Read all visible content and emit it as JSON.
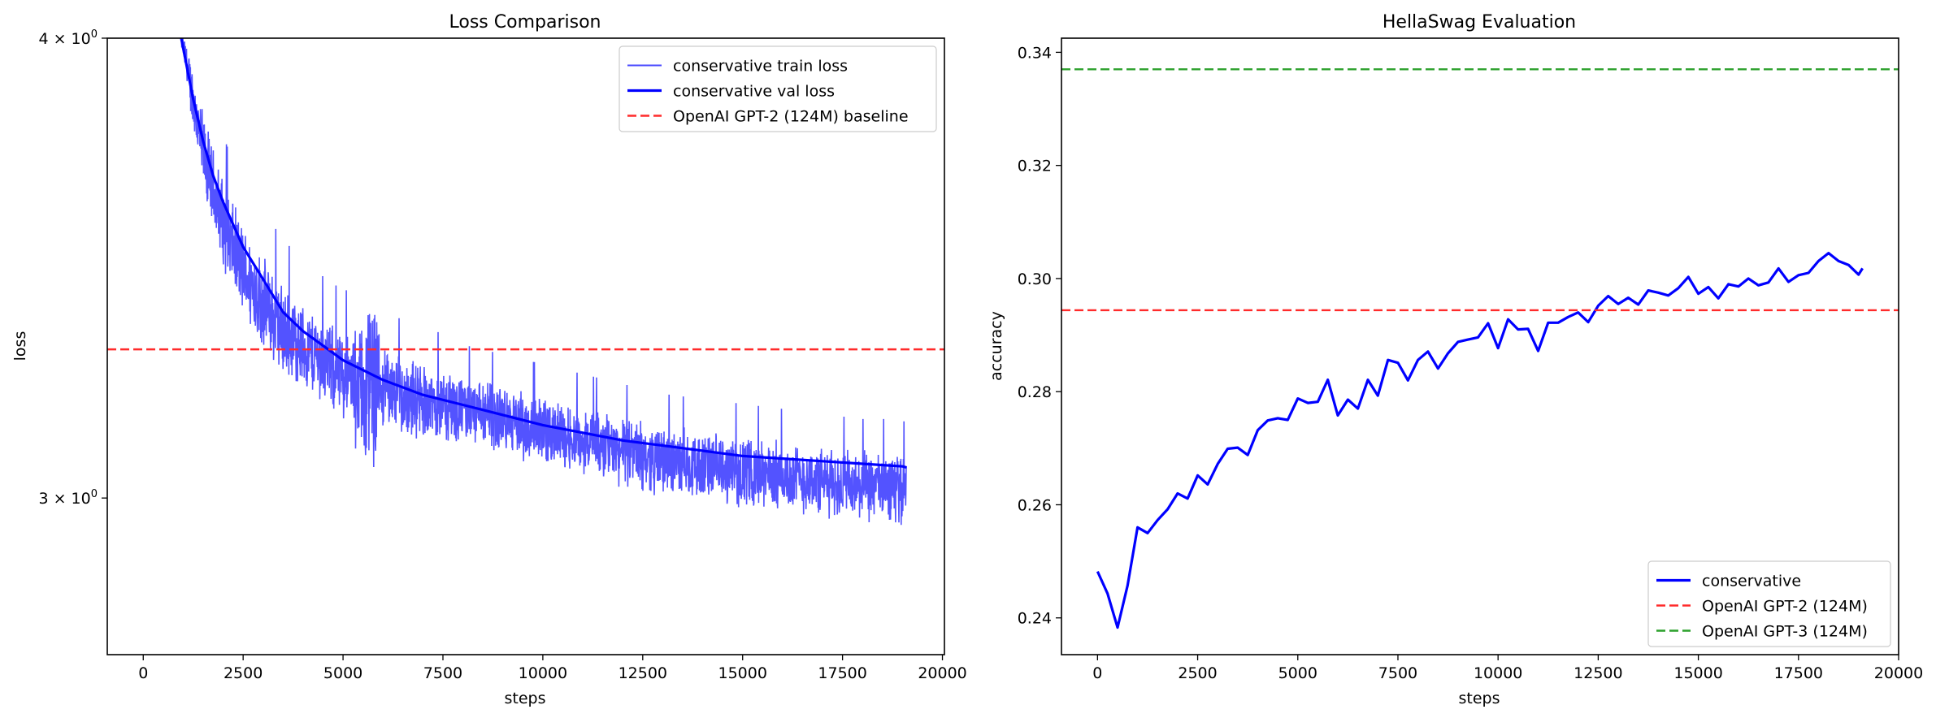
{
  "chart_data": [
    {
      "type": "line",
      "title": "Loss Comparison",
      "xlabel": "steps",
      "ylabel": "loss",
      "xlim": [
        -900,
        20050
      ],
      "ylim": [
        2.72,
        4.0
      ],
      "yscale": "log",
      "grid": false,
      "legend_position": "top-right",
      "x_ticks": [
        0,
        2500,
        5000,
        7500,
        10000,
        12500,
        15000,
        17500,
        20000
      ],
      "x_tick_labels": [
        "0",
        "2500",
        "5000",
        "7500",
        "10000",
        "12500",
        "15000",
        "17500",
        "20000"
      ],
      "y_ticks": [
        {
          "value": 4.0,
          "mantissa": "4",
          "base": "10",
          "exp": "0"
        },
        {
          "value": 3.0,
          "mantissa": "3",
          "base": "10",
          "exp": "0"
        }
      ],
      "series": [
        {
          "name": "conservative train loss",
          "color": "#4a4aff",
          "style": "solid",
          "kind": "noisy",
          "x": [
            950,
            1100,
            1300,
            1500,
            1800,
            2100,
            2500,
            3000,
            3500,
            4000,
            4500,
            5000,
            5500,
            5850,
            5900,
            6500,
            7000,
            8000,
            9000,
            10000,
            11000,
            12000,
            13000,
            14000,
            15000,
            16000,
            17000,
            18000,
            19000,
            19100
          ],
          "y": [
            4.0,
            3.93,
            3.82,
            3.72,
            3.62,
            3.54,
            3.46,
            3.39,
            3.33,
            3.3,
            3.27,
            3.24,
            3.22,
            3.21,
            3.22,
            3.2,
            3.19,
            3.17,
            3.15,
            3.13,
            3.11,
            3.09,
            3.07,
            3.06,
            3.05,
            3.04,
            3.03,
            3.02,
            3.02,
            3.03
          ],
          "spread": [
            0.02,
            0.05,
            0.08,
            0.09,
            0.09,
            0.09,
            0.09,
            0.09,
            0.09,
            0.08,
            0.08,
            0.08,
            0.09,
            0.1,
            0.07,
            0.07,
            0.07,
            0.06,
            0.06,
            0.06,
            0.06,
            0.06,
            0.06,
            0.06,
            0.06,
            0.06,
            0.06,
            0.06,
            0.06,
            0.05
          ]
        },
        {
          "name": "conservative val loss",
          "color": "#0000ff",
          "style": "solid",
          "x": [
            950,
            1250,
            1500,
            1750,
            2000,
            2500,
            3000,
            3500,
            4000,
            4500,
            5000,
            6000,
            7000,
            8000,
            9000,
            10000,
            11000,
            12000,
            13000,
            14000,
            15000,
            16000,
            17000,
            18000,
            19000,
            19100
          ],
          "y": [
            4.0,
            3.85,
            3.75,
            3.67,
            3.61,
            3.51,
            3.44,
            3.37,
            3.33,
            3.3,
            3.27,
            3.23,
            3.2,
            3.18,
            3.16,
            3.14,
            3.125,
            3.11,
            3.1,
            3.09,
            3.08,
            3.075,
            3.07,
            3.065,
            3.06,
            3.058
          ]
        },
        {
          "name": "OpenAI GPT-2 (124M) baseline",
          "color": "#ff2b2b",
          "style": "dashed",
          "kind": "hline",
          "value": 3.2924
        }
      ]
    },
    {
      "type": "line",
      "title": "HellaSwag Evaluation",
      "xlabel": "steps",
      "ylabel": "accuracy",
      "xlim": [
        -900,
        20000
      ],
      "ylim": [
        0.2335,
        0.3425
      ],
      "grid": false,
      "legend_position": "bottom-right",
      "x_ticks": [
        0,
        2500,
        5000,
        7500,
        10000,
        12500,
        15000,
        17500,
        20000
      ],
      "x_tick_labels": [
        "0",
        "2500",
        "5000",
        "7500",
        "10000",
        "12500",
        "15000",
        "17500",
        "20000"
      ],
      "y_ticks": [
        0.24,
        0.26,
        0.28,
        0.3,
        0.32,
        0.34
      ],
      "y_tick_labels": [
        "0.24",
        "0.26",
        "0.28",
        "0.30",
        "0.32",
        "0.34"
      ],
      "series": [
        {
          "name": "conservative",
          "color": "#0000ff",
          "style": "solid",
          "x": [
            0,
            250,
            500,
            750,
            1000,
            1250,
            1500,
            1750,
            2000,
            2250,
            2500,
            2750,
            3000,
            3250,
            3500,
            3750,
            4000,
            4250,
            4500,
            4750,
            5000,
            5250,
            5500,
            5750,
            6000,
            6250,
            6500,
            6750,
            7000,
            7250,
            7500,
            7750,
            8000,
            8250,
            8500,
            8750,
            9000,
            9250,
            9500,
            9750,
            10000,
            10250,
            10500,
            10750,
            11000,
            11250,
            11500,
            11750,
            12000,
            12250,
            12500,
            12750,
            13000,
            13250,
            13500,
            13750,
            14000,
            14250,
            14500,
            14750,
            15000,
            15250,
            15500,
            15750,
            16000,
            16250,
            16500,
            16750,
            17000,
            17250,
            17500,
            17750,
            18000,
            18250,
            18500,
            18750,
            19000,
            19100
          ],
          "y": [
            0.2482,
            0.2443,
            0.2383,
            0.2457,
            0.256,
            0.255,
            0.2573,
            0.2592,
            0.262,
            0.2611,
            0.2652,
            0.2636,
            0.2672,
            0.2699,
            0.2701,
            0.2688,
            0.2732,
            0.2749,
            0.2753,
            0.275,
            0.2788,
            0.278,
            0.2782,
            0.2821,
            0.2758,
            0.2786,
            0.277,
            0.2821,
            0.2793,
            0.2856,
            0.2851,
            0.282,
            0.2856,
            0.2871,
            0.2841,
            0.2868,
            0.2888,
            0.2892,
            0.2896,
            0.2921,
            0.2877,
            0.2928,
            0.291,
            0.2911,
            0.2872,
            0.2922,
            0.2922,
            0.2932,
            0.294,
            0.2923,
            0.2952,
            0.2969,
            0.2955,
            0.2966,
            0.2954,
            0.2979,
            0.2975,
            0.297,
            0.2983,
            0.3003,
            0.2973,
            0.2985,
            0.2965,
            0.299,
            0.2986,
            0.3,
            0.2988,
            0.2993,
            0.3018,
            0.2994,
            0.3006,
            0.301,
            0.3031,
            0.3045,
            0.3031,
            0.3024,
            0.3007,
            0.3018
          ]
        },
        {
          "name": "OpenAI GPT-2 (124M)",
          "color": "#ff2b2b",
          "style": "dashed",
          "kind": "hline",
          "value": 0.2944
        },
        {
          "name": "OpenAI GPT-3 (124M)",
          "color": "#2ca02c",
          "style": "dashed",
          "kind": "hline",
          "value": 0.337
        }
      ]
    }
  ]
}
